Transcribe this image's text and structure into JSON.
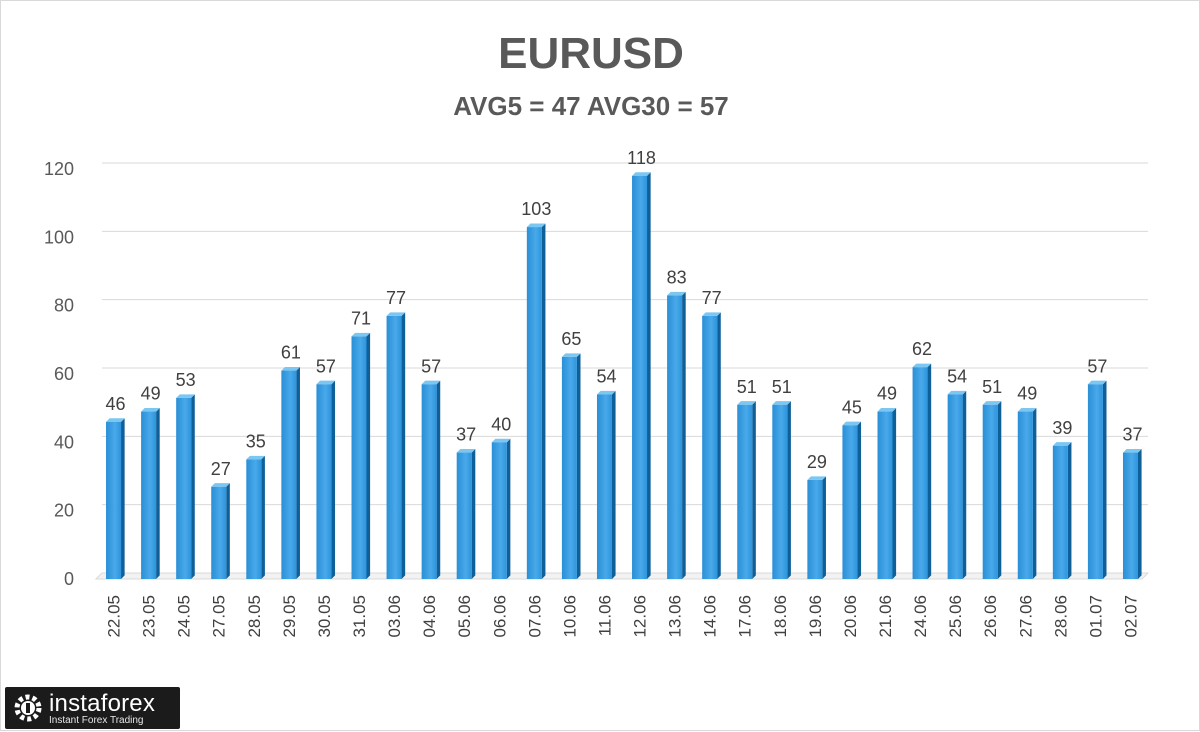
{
  "chart_data": {
    "type": "bar",
    "title": "EURUSD",
    "subtitle": "AVG5 = 47 AVG30 = 57",
    "categories": [
      "22.05",
      "23.05",
      "24.05",
      "27.05",
      "28.05",
      "29.05",
      "30.05",
      "31.05",
      "03.06",
      "04.06",
      "05.06",
      "06.06",
      "07.06",
      "10.06",
      "11.06",
      "12.06",
      "13.06",
      "14.06",
      "17.06",
      "18.06",
      "19.06",
      "20.06",
      "21.06",
      "24.06",
      "25.06",
      "26.06",
      "27.06",
      "28.06",
      "01.07",
      "02.07"
    ],
    "values": [
      46,
      49,
      53,
      27,
      35,
      61,
      57,
      71,
      77,
      57,
      37,
      40,
      103,
      65,
      54,
      118,
      83,
      77,
      51,
      51,
      29,
      45,
      49,
      62,
      54,
      51,
      49,
      39,
      57,
      37
    ],
    "ylim": [
      0,
      120
    ],
    "yticks": [
      0,
      20,
      40,
      60,
      80,
      100,
      120
    ],
    "grid": true,
    "bar_color": "#1e90d8"
  },
  "logo": {
    "text": "instaforex",
    "tagline": "Instant Forex Trading"
  }
}
